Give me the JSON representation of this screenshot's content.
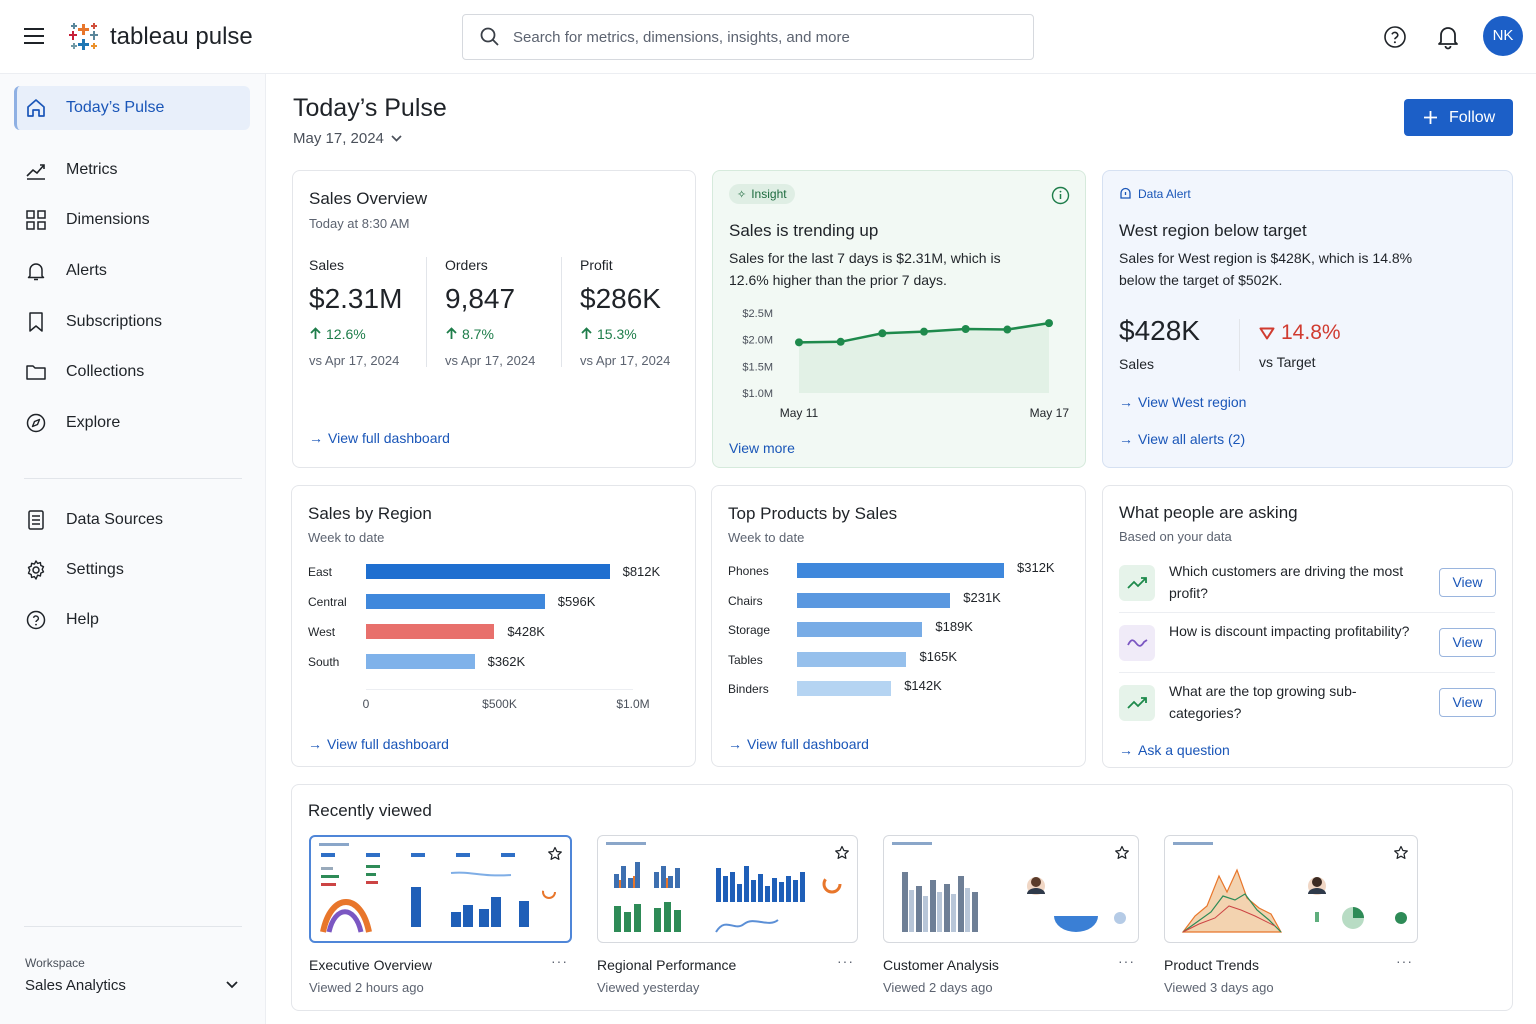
{
  "app": {
    "name": "tableau pulse"
  },
  "search": {
    "placeholder": "Search for metrics, dimensions, insights, and more"
  },
  "user": {
    "initials": "NK"
  },
  "sidebar": {
    "items": [
      {
        "label": "Today’s Pulse",
        "icon": "home-icon",
        "active": true
      },
      {
        "label": "Metrics",
        "icon": "trend-chart-icon"
      },
      {
        "label": "Dimensions",
        "icon": "grid-icon"
      },
      {
        "label": "Alerts",
        "icon": "bell-icon"
      },
      {
        "label": "Subscriptions",
        "icon": "bookmark-icon"
      },
      {
        "label": "Collections",
        "icon": "folder-icon"
      },
      {
        "label": "Explore",
        "icon": "compass-icon"
      }
    ],
    "secondary": [
      {
        "label": "Data Sources",
        "icon": "data-source-icon"
      },
      {
        "label": "Settings",
        "icon": "gear-icon"
      },
      {
        "label": "Help",
        "icon": "help-icon"
      }
    ],
    "workspace": {
      "caption": "Workspace",
      "name": "Sales Analytics"
    }
  },
  "page": {
    "title": "Today’s Pulse",
    "date": "May 17, 2024",
    "follow_label": "Follow"
  },
  "sales_overview": {
    "title": "Sales Overview",
    "subtitle": "Today at 8:30 AM",
    "kpis": [
      {
        "label": "Sales",
        "value": "$2.31M",
        "delta": "12.6%",
        "compare": "vs Apr 17, 2024"
      },
      {
        "label": "Orders",
        "value": "9,847",
        "delta": "8.7%",
        "compare": "vs Apr 17, 2024"
      },
      {
        "label": "Profit",
        "value": "$286K",
        "delta": "15.3%",
        "compare": "vs Apr 17, 2024"
      }
    ],
    "link": "View full dashboard"
  },
  "insight": {
    "tag": "Insight",
    "title": "Sales is trending up",
    "body": "Sales for the last 7 days is $2.31M, which is 12.6% higher than the prior 7 days.",
    "link": "View more",
    "accent": "#1e8a4c"
  },
  "alert": {
    "tag": "Data Alert",
    "title": "West region below target",
    "body": "Sales for West region is $428K, which is 14.8% below the target of $502K.",
    "value": "$428K",
    "value_label": "Sales",
    "delta": "14.8%",
    "delta_label": "vs Target",
    "delta_color": "#d03b30",
    "links": [
      "View West region",
      "View all alerts (2)"
    ]
  },
  "region": {
    "title": "Sales by Region",
    "subtitle": "Week to date",
    "link": "View full dashboard"
  },
  "products": {
    "title": "Top Products by Sales",
    "subtitle": "Week to date",
    "link": "View full dashboard"
  },
  "asking": {
    "title": "What people are asking",
    "subtitle": "Based on your data",
    "questions": [
      {
        "text": "Which customers are driving the most profit?",
        "icon": "trend-up-icon",
        "button": "View"
      },
      {
        "text": "How is discount impacting profitability?",
        "icon": "wave-icon",
        "button": "View"
      },
      {
        "text": "What are the top growing sub-categories?",
        "icon": "trend-up-icon",
        "button": "View"
      }
    ],
    "link": "Ask a question"
  },
  "recent": {
    "title": "Recently viewed",
    "items": [
      {
        "name": "Executive Overview",
        "time": "Viewed 2 hours ago"
      },
      {
        "name": "Regional Performance",
        "time": "Viewed yesterday"
      },
      {
        "name": "Customer Analysis",
        "time": "Viewed 2 days ago"
      },
      {
        "name": "Product Trends",
        "time": "Viewed 3 days ago"
      }
    ]
  },
  "chart_data": [
    {
      "type": "line",
      "x": [
        "May 11",
        "May 12",
        "May 13",
        "May 14",
        "May 15",
        "May 16",
        "May 17"
      ],
      "x_tick_labels": [
        "May 11",
        "May 17"
      ],
      "series": [
        {
          "values": [
            1.95,
            1.96,
            2.12,
            2.15,
            2.2,
            2.19,
            2.31
          ]
        }
      ],
      "y_ticks": [
        "$2.5M",
        "$2.0M",
        "$1.5M",
        "$1.0M"
      ],
      "ylim": [
        1.0,
        2.5
      ],
      "color": "#1e8a4c"
    },
    {
      "type": "bar",
      "orientation": "horizontal",
      "categories": [
        "East",
        "Central",
        "West",
        "South"
      ],
      "values": [
        812,
        596,
        428,
        362
      ],
      "value_labels": [
        "$812K",
        "$596K",
        "$428K",
        "$362K"
      ],
      "x_ticks": [
        "0",
        "$500K",
        "$1.0M"
      ],
      "xlim": [
        0,
        1000
      ],
      "colors": [
        "#1f6fd0",
        "#3f88dc",
        "#e8706c",
        "#7fb2ea"
      ]
    },
    {
      "type": "bar",
      "orientation": "horizontal",
      "categories": [
        "Phones",
        "Chairs",
        "Storage",
        "Tables",
        "Binders"
      ],
      "values": [
        312,
        231,
        189,
        165,
        142
      ],
      "value_labels": [
        "$312K",
        "$231K",
        "$189K",
        "$165K",
        "$142K"
      ],
      "colors": [
        "#3f88dc",
        "#5a98e0",
        "#78ace6",
        "#96c0ec",
        "#b5d4f2"
      ]
    }
  ]
}
